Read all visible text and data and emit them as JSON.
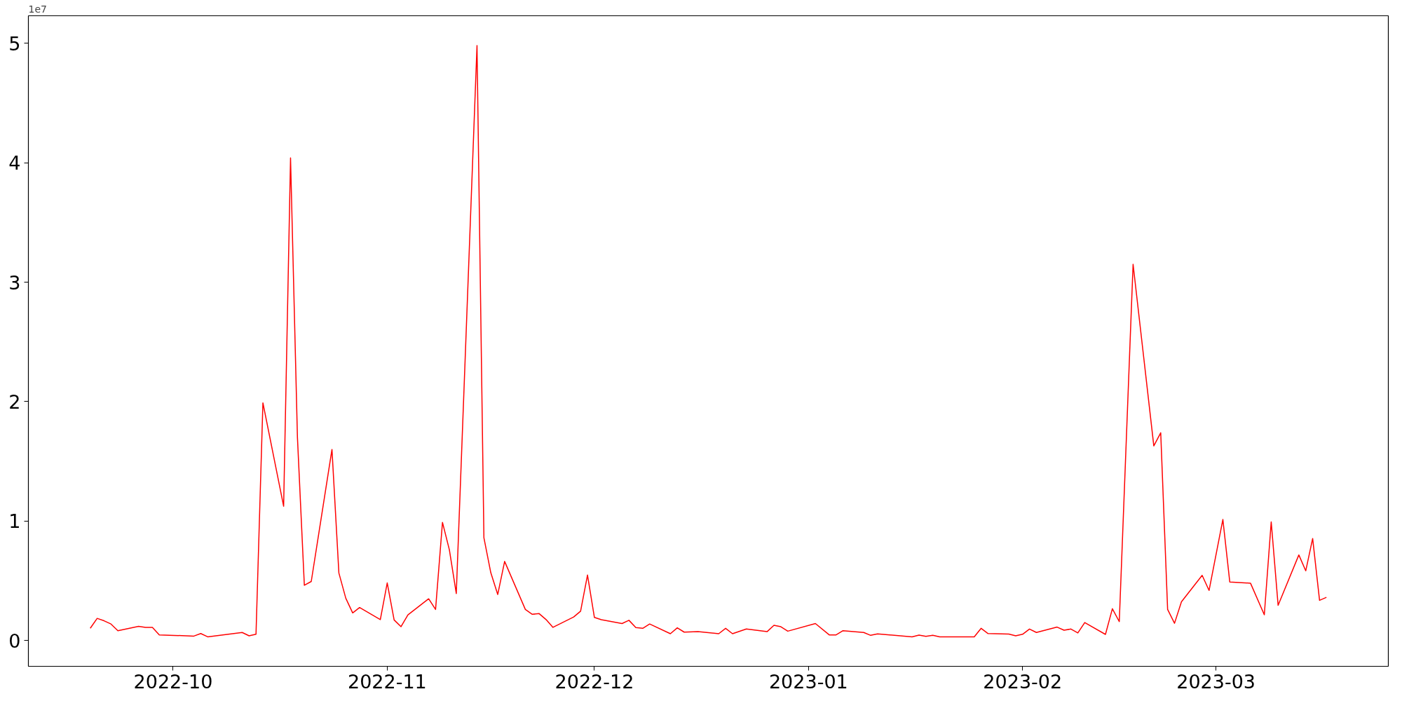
{
  "chart_data": {
    "type": "line",
    "x": [
      "2022-09-19",
      "2022-09-20",
      "2022-09-21",
      "2022-09-22",
      "2022-09-23",
      "2022-09-26",
      "2022-09-27",
      "2022-09-28",
      "2022-09-29",
      "2022-10-04",
      "2022-10-05",
      "2022-10-06",
      "2022-10-11",
      "2022-10-12",
      "2022-10-13",
      "2022-10-14",
      "2022-10-17",
      "2022-10-18",
      "2022-10-19",
      "2022-10-20",
      "2022-10-21",
      "2022-10-24",
      "2022-10-25",
      "2022-10-26",
      "2022-10-27",
      "2022-10-28",
      "2022-10-31",
      "2022-11-01",
      "2022-11-02",
      "2022-11-03",
      "2022-11-04",
      "2022-11-07",
      "2022-11-08",
      "2022-11-09",
      "2022-11-10",
      "2022-11-11",
      "2022-11-14",
      "2022-11-15",
      "2022-11-16",
      "2022-11-17",
      "2022-11-18",
      "2022-11-21",
      "2022-11-22",
      "2022-11-23",
      "2022-11-24",
      "2022-11-25",
      "2022-11-28",
      "2022-11-29",
      "2022-11-30",
      "2022-12-01",
      "2022-12-02",
      "2022-12-05",
      "2022-12-06",
      "2022-12-07",
      "2022-12-08",
      "2022-12-09",
      "2022-12-12",
      "2022-12-13",
      "2022-12-14",
      "2022-12-16",
      "2022-12-19",
      "2022-12-20",
      "2022-12-21",
      "2022-12-23",
      "2022-12-26",
      "2022-12-27",
      "2022-12-28",
      "2022-12-29",
      "2023-01-02",
      "2023-01-04",
      "2023-01-05",
      "2023-01-06",
      "2023-01-09",
      "2023-01-10",
      "2023-01-11",
      "2023-01-16",
      "2023-01-17",
      "2023-01-18",
      "2023-01-19",
      "2023-01-20",
      "2023-01-25",
      "2023-01-26",
      "2023-01-27",
      "2023-01-30",
      "2023-01-31",
      "2023-02-01",
      "2023-02-02",
      "2023-02-03",
      "2023-02-06",
      "2023-02-07",
      "2023-02-08",
      "2023-02-09",
      "2023-02-10",
      "2023-02-13",
      "2023-02-14",
      "2023-02-15",
      "2023-02-17",
      "2023-02-20",
      "2023-02-21",
      "2023-02-22",
      "2023-02-23",
      "2023-02-24",
      "2023-02-27",
      "2023-02-28",
      "2023-03-02",
      "2023-03-03",
      "2023-03-06",
      "2023-03-08",
      "2023-03-09",
      "2023-03-10",
      "2023-03-13",
      "2023-03-14",
      "2023-03-15",
      "2023-03-16",
      "2023-03-17"
    ],
    "series": [
      {
        "color": "#ff0000",
        "values": [
          0.103,
          0.186,
          0.166,
          0.139,
          0.083,
          0.119,
          0.111,
          0.111,
          0.048,
          0.038,
          0.059,
          0.032,
          0.068,
          0.04,
          0.053,
          1.99,
          1.125,
          4.04,
          1.7,
          0.463,
          0.495,
          1.6,
          0.566,
          0.355,
          0.232,
          0.277,
          0.176,
          0.483,
          0.173,
          0.117,
          0.216,
          0.35,
          0.261,
          0.99,
          0.76,
          0.394,
          4.98,
          0.861,
          0.568,
          0.386,
          0.663,
          0.261,
          0.22,
          0.226,
          0.176,
          0.111,
          0.198,
          0.246,
          0.549,
          0.194,
          0.175,
          0.143,
          0.17,
          0.109,
          0.103,
          0.139,
          0.058,
          0.107,
          0.071,
          0.075,
          0.058,
          0.103,
          0.058,
          0.097,
          0.075,
          0.128,
          0.116,
          0.079,
          0.143,
          0.048,
          0.048,
          0.083,
          0.068,
          0.044,
          0.056,
          0.032,
          0.046,
          0.036,
          0.044,
          0.032,
          0.032,
          0.103,
          0.059,
          0.055,
          0.04,
          0.053,
          0.097,
          0.068,
          0.113,
          0.087,
          0.097,
          0.064,
          0.151,
          0.052,
          0.267,
          0.159,
          3.15,
          1.63,
          1.74,
          0.261,
          0.145,
          0.325,
          0.546,
          0.42,
          1.014,
          0.491,
          0.481,
          0.216,
          0.994,
          0.295,
          0.717,
          0.584,
          0.855,
          0.337,
          0.362
        ]
      }
    ],
    "xlim": [
      "2022-09-10T01:00",
      "2023-03-25T23:00"
    ],
    "ylim": [
      -0.215,
      5.23
    ],
    "xticks": [
      {
        "value": "2022-10-01",
        "label": "2022-10"
      },
      {
        "value": "2022-11-01",
        "label": "2022-11"
      },
      {
        "value": "2022-12-01",
        "label": "2022-12"
      },
      {
        "value": "2023-01-01",
        "label": "2023-01"
      },
      {
        "value": "2023-02-01",
        "label": "2023-02"
      },
      {
        "value": "2023-03-01",
        "label": "2023-03"
      }
    ],
    "yticks": [
      0,
      1,
      2,
      3,
      4,
      5
    ],
    "annotations": [
      "1e7"
    ]
  }
}
